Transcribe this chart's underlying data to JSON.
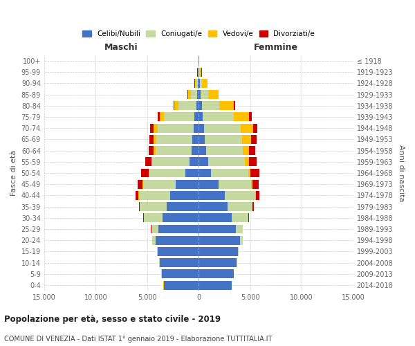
{
  "age_groups": [
    "0-4",
    "5-9",
    "10-14",
    "15-19",
    "20-24",
    "25-29",
    "30-34",
    "35-39",
    "40-44",
    "45-49",
    "50-54",
    "55-59",
    "60-64",
    "65-69",
    "70-74",
    "75-79",
    "80-84",
    "85-89",
    "90-94",
    "95-99",
    "100+"
  ],
  "birth_years": [
    "2014-2018",
    "2009-2013",
    "2004-2008",
    "1999-2003",
    "1994-1998",
    "1989-1993",
    "1984-1988",
    "1979-1983",
    "1974-1978",
    "1969-1973",
    "1964-1968",
    "1959-1963",
    "1954-1958",
    "1949-1953",
    "1944-1948",
    "1939-1943",
    "1934-1938",
    "1929-1933",
    "1924-1928",
    "1919-1923",
    "≤ 1918"
  ],
  "males": {
    "celibinubili": [
      3400,
      3600,
      3800,
      4000,
      4200,
      3900,
      3500,
      3100,
      2800,
      2200,
      1300,
      900,
      700,
      600,
      500,
      400,
      250,
      150,
      100,
      50,
      20
    ],
    "coniugati": [
      5,
      10,
      20,
      50,
      300,
      700,
      1800,
      2600,
      3000,
      3200,
      3500,
      3600,
      3500,
      3500,
      3500,
      3000,
      1700,
      600,
      150,
      30,
      10
    ],
    "vedovi": [
      5,
      5,
      5,
      5,
      5,
      5,
      5,
      10,
      30,
      50,
      80,
      100,
      150,
      250,
      350,
      400,
      400,
      300,
      120,
      30,
      5
    ],
    "divorziati": [
      5,
      5,
      5,
      5,
      10,
      20,
      50,
      100,
      300,
      500,
      700,
      600,
      500,
      400,
      350,
      200,
      80,
      40,
      20,
      10,
      2
    ]
  },
  "females": {
    "celibenubili": [
      3200,
      3400,
      3700,
      3800,
      4000,
      3600,
      3200,
      2800,
      2500,
      1900,
      1200,
      900,
      700,
      600,
      500,
      400,
      300,
      200,
      150,
      80,
      30
    ],
    "coniugate": [
      5,
      5,
      10,
      50,
      250,
      650,
      1600,
      2400,
      3000,
      3200,
      3600,
      3600,
      3600,
      3600,
      3600,
      3000,
      1700,
      700,
      200,
      50,
      10
    ],
    "vedove": [
      5,
      5,
      5,
      5,
      5,
      10,
      15,
      30,
      60,
      100,
      200,
      350,
      600,
      900,
      1200,
      1500,
      1400,
      1000,
      500,
      150,
      20
    ],
    "divorziate": [
      5,
      5,
      5,
      5,
      10,
      30,
      80,
      150,
      300,
      600,
      900,
      800,
      600,
      500,
      400,
      250,
      120,
      60,
      20,
      10,
      2
    ]
  },
  "colors": {
    "celibinubili": "#4472c4",
    "coniugati": "#c5d9a0",
    "vedovi": "#ffc000",
    "divorziati": "#cc0000"
  },
  "legend_labels": [
    "Celibi/Nubili",
    "Coniugati/e",
    "Vedovi/e",
    "Divorziati/e"
  ],
  "title": "Popolazione per età, sesso e stato civile - 2019",
  "subtitle": "COMUNE DI VENEZIA - Dati ISTAT 1° gennaio 2019 - Elaborazione TUTTITALIA.IT",
  "xlabel_left": "Maschi",
  "xlabel_right": "Femmine",
  "ylabel_left": "Fasce di età",
  "ylabel_right": "Anni di nascita",
  "xlim": 15000,
  "xticks": [
    -15000,
    -10000,
    -5000,
    0,
    5000,
    10000,
    15000
  ],
  "xticklabels": [
    "15.000",
    "10.000",
    "5.000",
    "0",
    "5.000",
    "10.000",
    "15.000"
  ],
  "bg_color": "#ffffff",
  "grid_color": "#cccccc"
}
